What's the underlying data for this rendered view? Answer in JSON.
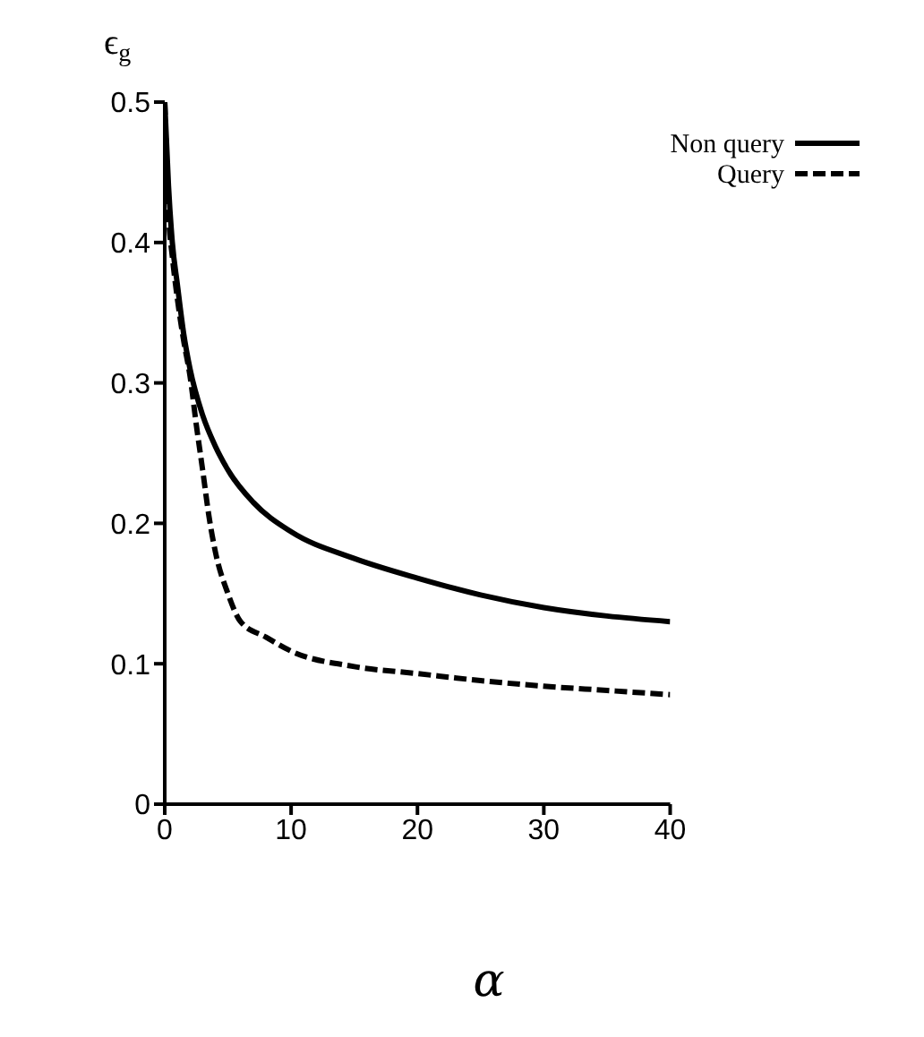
{
  "chart_data": {
    "type": "line",
    "xlabel": "α",
    "ylabel": "ϵ$_{g}$",
    "xlim": [
      0,
      40
    ],
    "ylim": [
      0,
      0.5
    ],
    "xticks": [
      0,
      10,
      20,
      30,
      40
    ],
    "yticks": [
      0,
      0.1,
      0.2,
      0.3,
      0.4,
      0.5
    ],
    "grid": false,
    "legend": "top right",
    "marker": "none",
    "series": [
      {
        "name": "Non query",
        "color": "#000000",
        "line_style": "solid",
        "x": [
          0,
          0.3,
          0.6,
          1,
          1.5,
          2,
          3,
          4,
          5,
          7,
          10,
          15,
          20,
          25,
          30,
          35,
          40
        ],
        "values": [
          0.5,
          0.44,
          0.4,
          0.37,
          0.335,
          0.31,
          0.277,
          0.255,
          0.238,
          0.215,
          0.194,
          0.175,
          0.161,
          0.149,
          0.14,
          0.134,
          0.13
        ]
      },
      {
        "name": "Query",
        "color": "#000000",
        "line_style": "dashed",
        "x": [
          0,
          0.3,
          0.6,
          1,
          1.5,
          2,
          2.5,
          3,
          3.5,
          4,
          5,
          6,
          8,
          10,
          15,
          20,
          25,
          30,
          35,
          40
        ],
        "values": [
          0.5,
          0.42,
          0.39,
          0.36,
          0.33,
          0.305,
          0.27,
          0.238,
          0.205,
          0.18,
          0.15,
          0.13,
          0.119,
          0.109,
          0.098,
          0.093,
          0.088,
          0.084,
          0.081,
          0.078
        ]
      }
    ]
  }
}
